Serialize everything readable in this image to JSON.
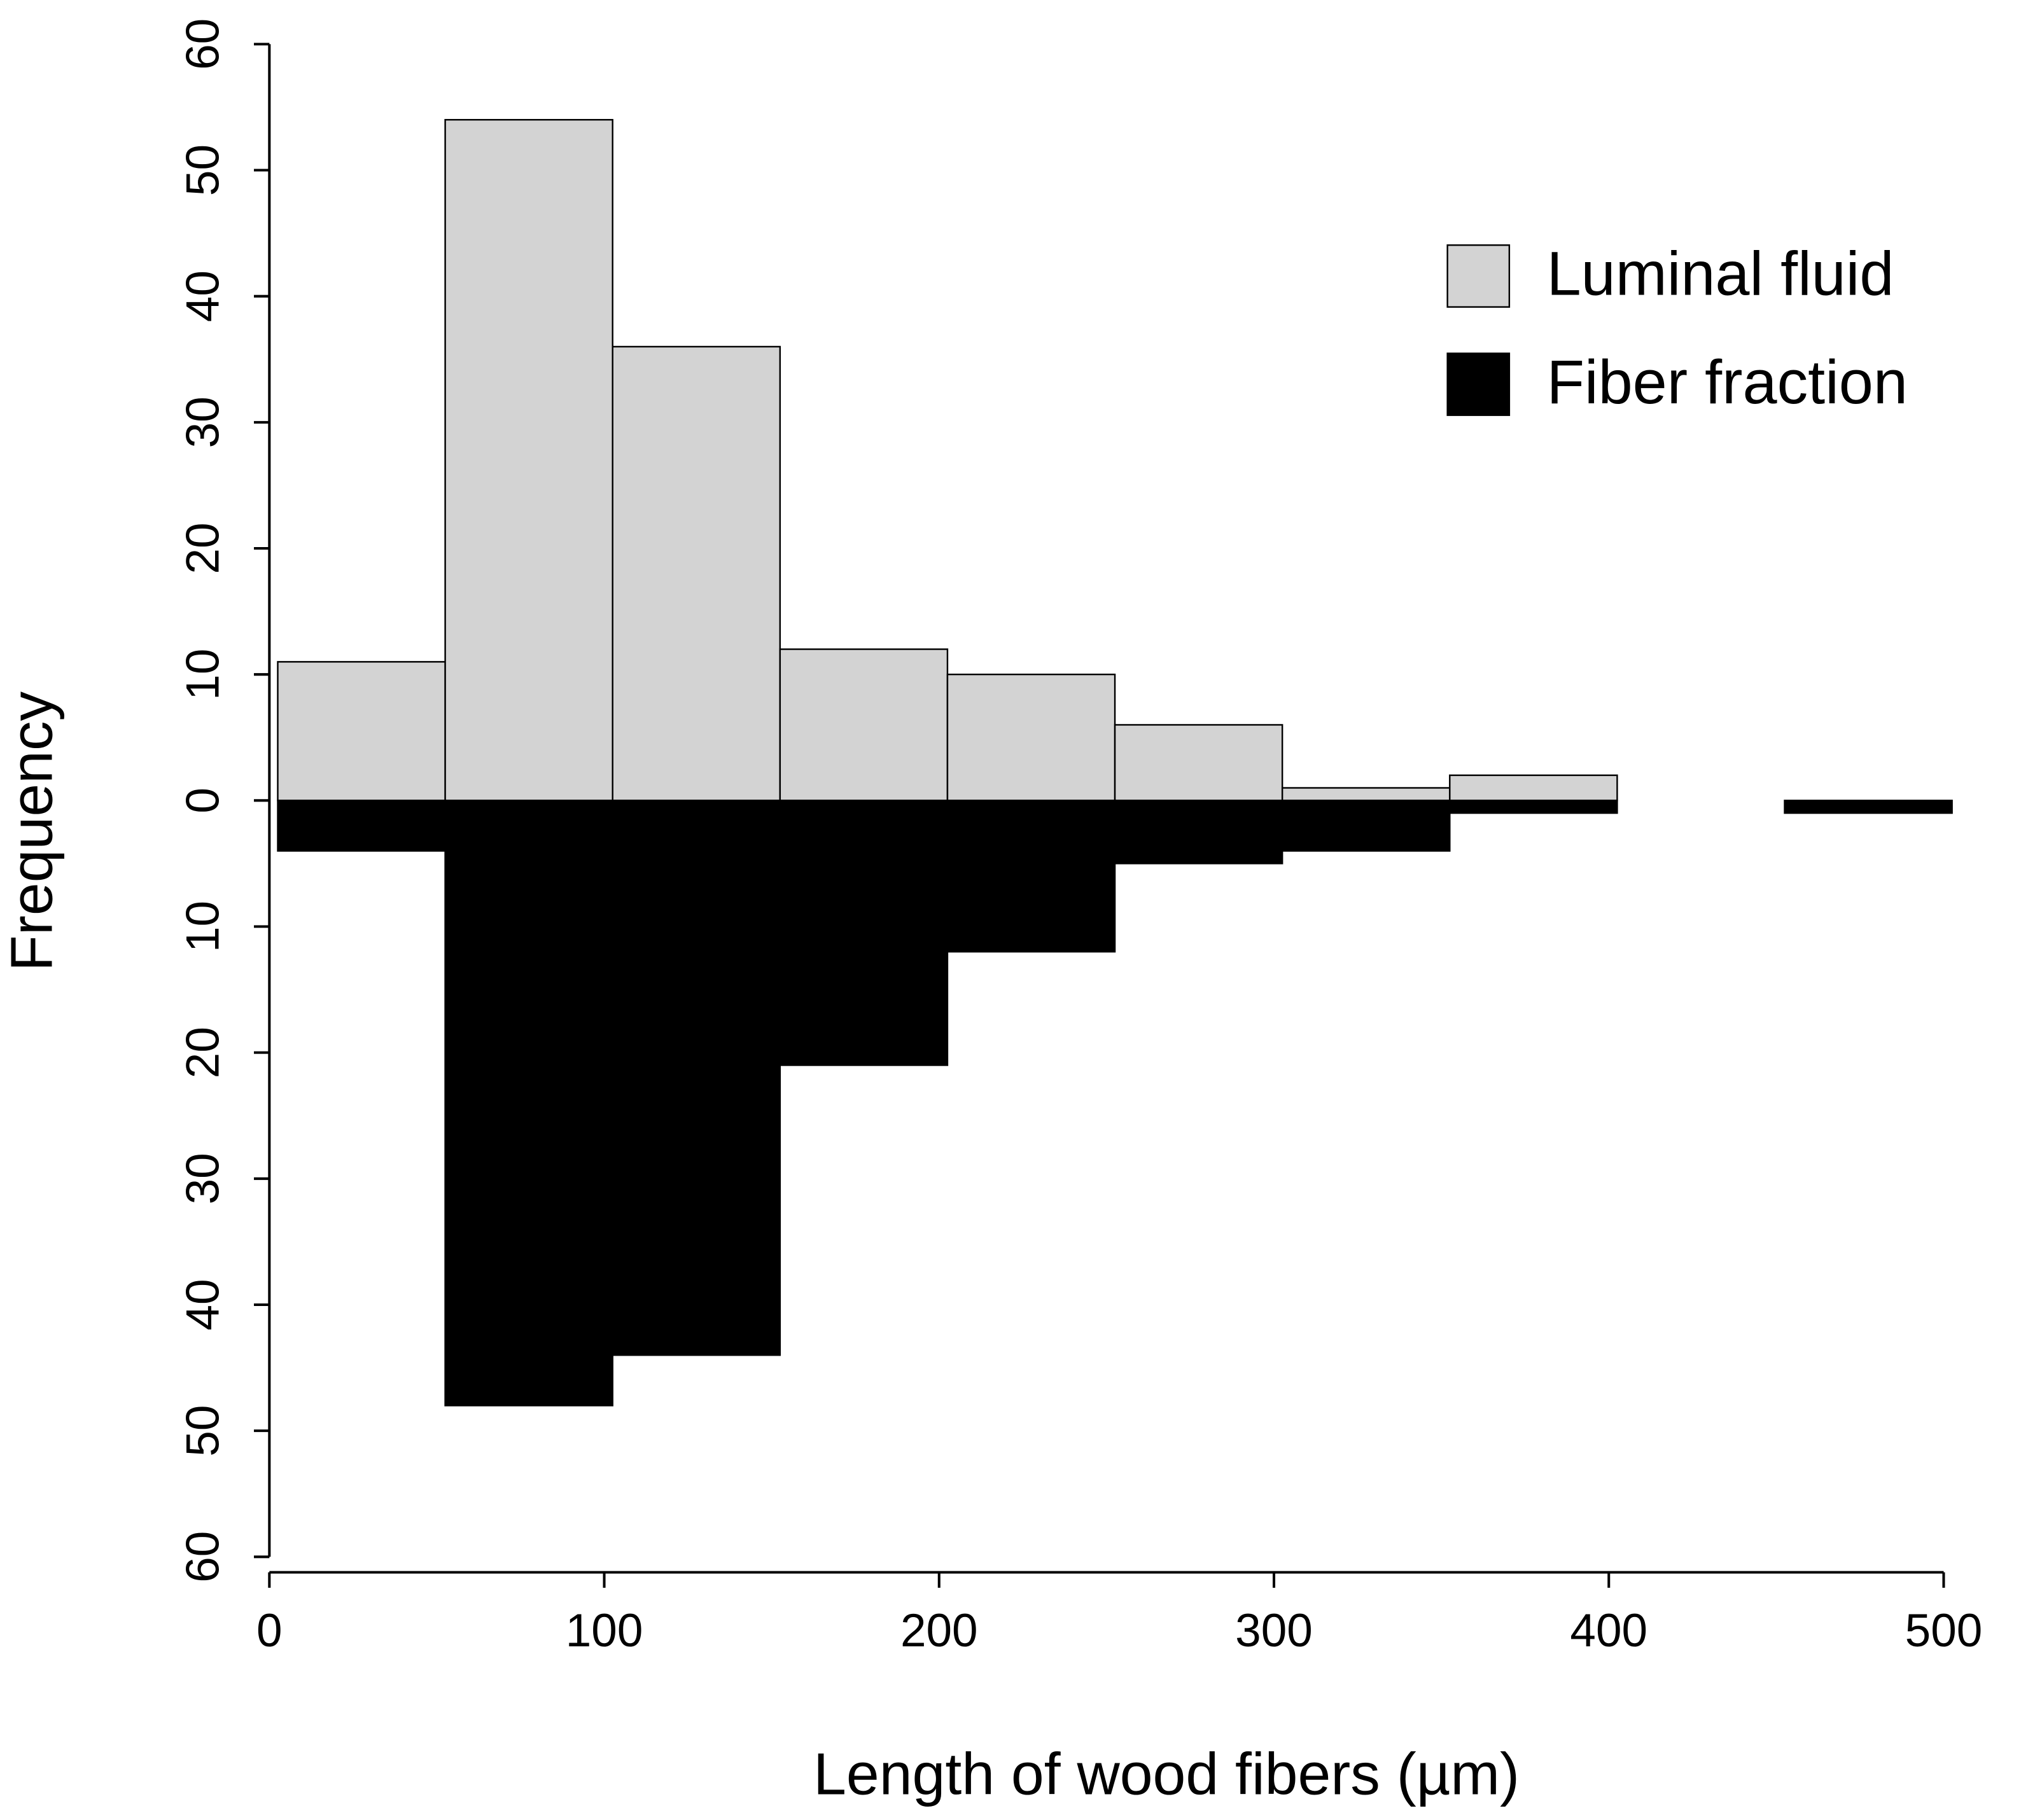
{
  "chart_data": {
    "type": "histogram",
    "x_label": "Length of wood fibers (µm)",
    "y_label": "Frequency",
    "bins": [
      2.5,
      52.5,
      102.5,
      152.5,
      202.5,
      252.5,
      302.5,
      352.5,
      402.5,
      452.5,
      502.5
    ],
    "series": [
      {
        "name": "Luminal fluid",
        "color": "#d3d3d3",
        "direction": "up",
        "values": [
          11,
          54,
          36,
          12,
          10,
          6,
          1,
          2,
          0,
          0
        ]
      },
      {
        "name": "Fiber fraction",
        "color": "#000000",
        "direction": "down",
        "values": [
          4,
          48,
          44,
          21,
          12,
          5,
          4,
          1,
          0,
          1
        ]
      }
    ],
    "xlim": [
      0,
      500
    ],
    "xticks": [
      0,
      100,
      200,
      300,
      400,
      500
    ],
    "ylim": [
      -60,
      60
    ],
    "yticks": [
      {
        "value": -60,
        "label": "60"
      },
      {
        "value": -50,
        "label": "50"
      },
      {
        "value": -40,
        "label": "40"
      },
      {
        "value": -30,
        "label": "30"
      },
      {
        "value": -20,
        "label": "20"
      },
      {
        "value": -10,
        "label": "10"
      },
      0,
      10,
      20,
      30,
      40,
      50,
      60
    ],
    "grid": false,
    "legend": "top-right"
  }
}
